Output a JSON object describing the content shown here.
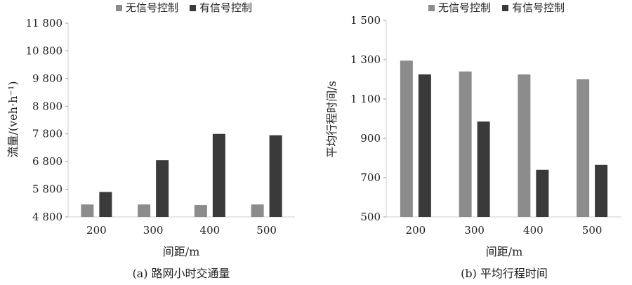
{
  "chart_data": [
    {
      "type": "bar",
      "caption": "(a) 路网小时交通量",
      "xlabel": "间距/m",
      "ylabel": "流量/(veh·h⁻¹)",
      "categories": [
        "200",
        "300",
        "400",
        "500"
      ],
      "series": [
        {
          "name": "无信号控制",
          "color": "#8c8c8c",
          "values": [
            5250,
            5250,
            5230,
            5250
          ]
        },
        {
          "name": "有信号控制",
          "color": "#3a3a3a",
          "values": [
            5700,
            6850,
            7800,
            7750
          ]
        }
      ],
      "ylim": [
        4800,
        11800
      ],
      "yticks": [
        4800,
        5800,
        6800,
        7800,
        8800,
        9800,
        10800,
        11800
      ],
      "ytick_labels": [
        "4 800",
        "5 800",
        "6 800",
        "7 800",
        "8 800",
        "9 800",
        "10 800",
        "11 800"
      ],
      "legend": "top",
      "grid": false
    },
    {
      "type": "bar",
      "caption": "(b) 平均行程时间",
      "xlabel": "间距/m",
      "ylabel": "平均行程时间/s",
      "categories": [
        "200",
        "300",
        "400",
        "500"
      ],
      "series": [
        {
          "name": "无信号控制",
          "color": "#8c8c8c",
          "values": [
            1295,
            1240,
            1225,
            1200
          ]
        },
        {
          "name": "有信号控制",
          "color": "#3a3a3a",
          "values": [
            1225,
            985,
            740,
            765
          ]
        }
      ],
      "ylim": [
        500,
        1500
      ],
      "yticks": [
        500,
        700,
        900,
        1100,
        1300,
        1500
      ],
      "ytick_labels": [
        "500",
        "700",
        "900",
        "1 100",
        "1 300",
        "1 500"
      ],
      "legend": "top",
      "grid": false
    }
  ]
}
